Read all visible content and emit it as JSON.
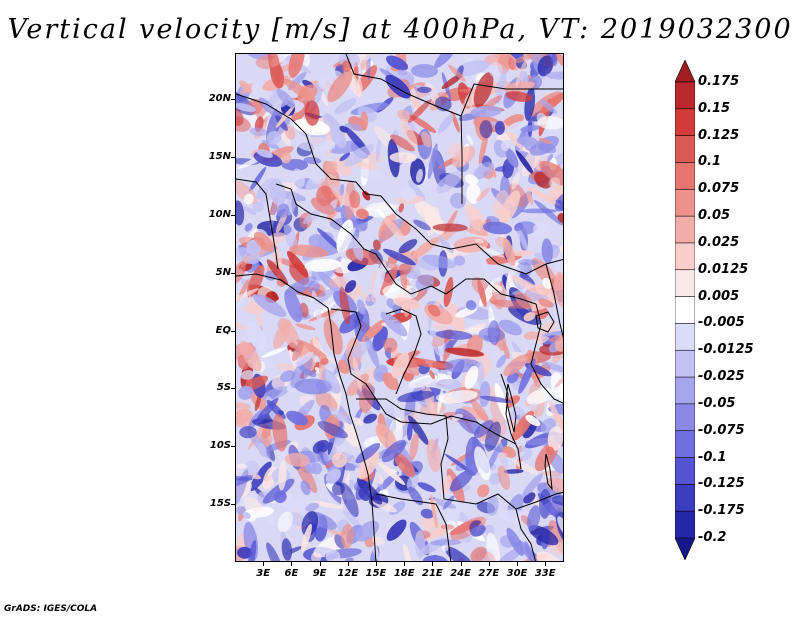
{
  "title": "Vertical velocity [m/s] at 400hPa, VT: 2019032300",
  "credit": "GrADS: IGES/COLA",
  "map": {
    "variable": "Vertical velocity",
    "units": "m/s",
    "level": "400hPa",
    "valid_time": "2019032300",
    "lat_range": [
      -20,
      24
    ],
    "lon_range": [
      0,
      35
    ],
    "lat_labels": [
      "20N",
      "15N",
      "10N",
      "5N",
      "EQ",
      "5S",
      "10S",
      "15S"
    ],
    "lon_labels": [
      "3E",
      "6E",
      "9E",
      "12E",
      "15E",
      "18E",
      "21E",
      "24E",
      "27E",
      "30E",
      "33E"
    ]
  },
  "colorbar": {
    "levels": [
      "0.175",
      "0.15",
      "0.125",
      "0.1",
      "0.075",
      "0.05",
      "0.025",
      "0.0125",
      "0.005",
      "-0.005",
      "-0.0125",
      "-0.025",
      "-0.05",
      "-0.075",
      "-0.1",
      "-0.125",
      "-0.175",
      "-0.2"
    ],
    "colors": [
      "#a01e20",
      "#b9282a",
      "#d13b3a",
      "#dc5a55",
      "#e67570",
      "#ec918b",
      "#f3ada8",
      "#f8cdca",
      "#fce8e6",
      "#ffffff",
      "#dcdcfa",
      "#c2c2f4",
      "#a6a6ee",
      "#8a8ae6",
      "#6e6ede",
      "#5454d2",
      "#3c3cbe",
      "#2626a8",
      "#17178a"
    ]
  }
}
